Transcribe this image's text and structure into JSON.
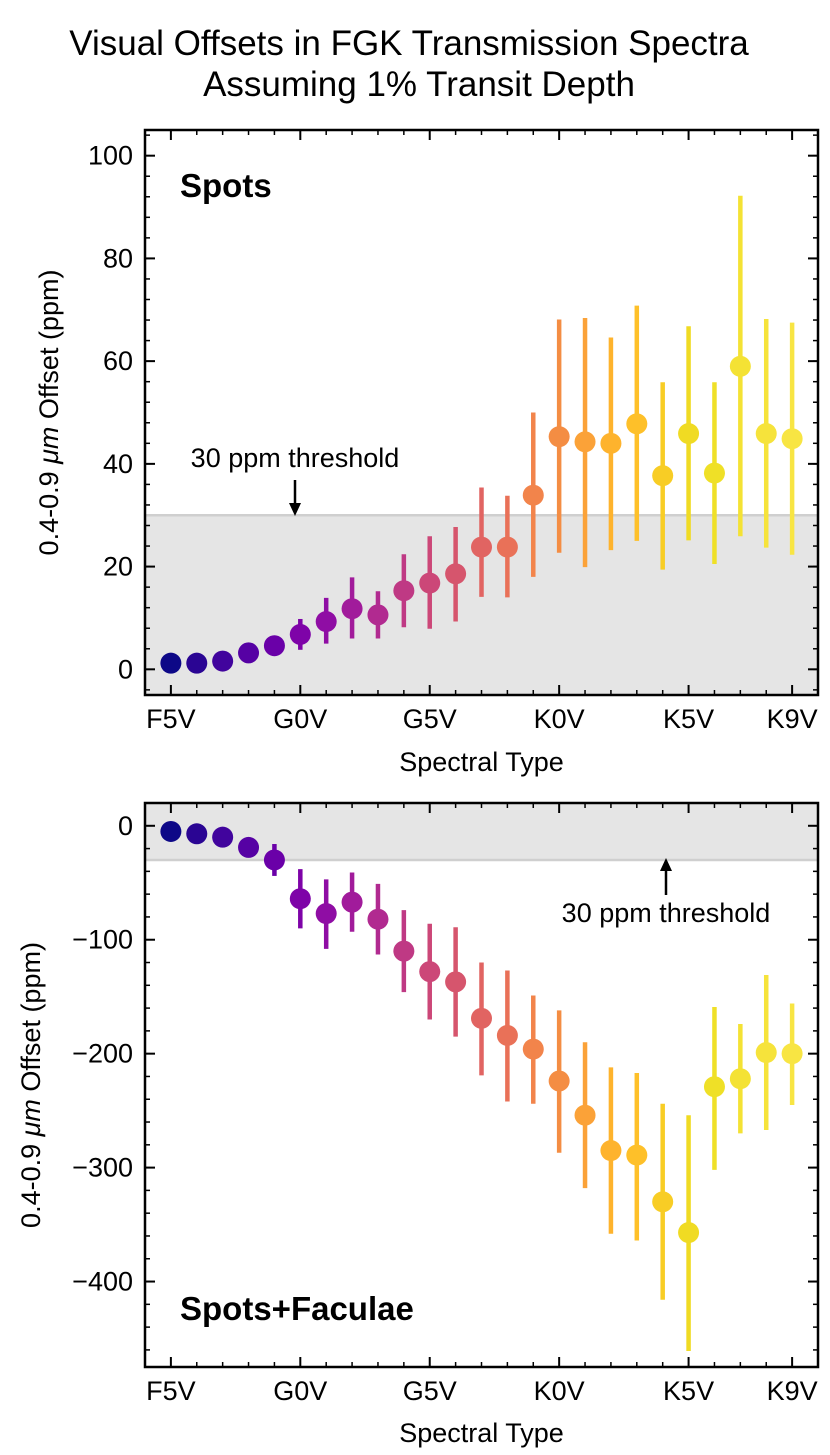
{
  "figure": {
    "title_line1": "Visual Offsets in FGK Transmission Spectra",
    "title_line2": "Assuming 1% Transit Depth"
  },
  "chart_data": [
    {
      "type": "scatter",
      "panel_label": "Spots",
      "xlabel": "Spectral Type",
      "ylabel_prefix": "0.4-0.9 ",
      "ylabel_unit": "μm",
      "ylabel_suffix": " Offset (ppm)",
      "xtick_labels": [
        "F5V",
        "G0V",
        "G5V",
        "K0V",
        "K5V",
        "K9V"
      ],
      "xtick_positions": [
        0,
        5,
        10,
        15,
        20,
        24
      ],
      "xlim": [
        -1,
        25
      ],
      "ylim": [
        -5,
        105
      ],
      "yticks": [
        0,
        20,
        40,
        60,
        80,
        100
      ],
      "threshold": {
        "value": 30,
        "label": "30 ppm threshold",
        "shade_to": -5
      },
      "colors": [
        "#0d0887",
        "#2a0593",
        "#41049d",
        "#5601a4",
        "#6a00a8",
        "#7e03a8",
        "#8f0da4",
        "#a11b9b",
        "#b12a90",
        "#bf3984",
        "#cc4778",
        "#d6556d",
        "#e16462",
        "#e97158",
        "#f2844b",
        "#f48d43",
        "#fba238",
        "#feb32d",
        "#fec029",
        "#f8cd25",
        "#f0db23",
        "#efe027",
        "#f4e234",
        "#f6e33b",
        "#f8e543"
      ],
      "series": [
        {
          "name": "Spots",
          "x": [
            0,
            1,
            2,
            3,
            4,
            5,
            6,
            7,
            8,
            9,
            10,
            11,
            12,
            13,
            14,
            15,
            16,
            17,
            18,
            19,
            20,
            21,
            22,
            23,
            24
          ],
          "y": [
            1.2,
            1.2,
            1.6,
            3.2,
            4.6,
            6.8,
            9.3,
            11.8,
            10.6,
            15.3,
            16.8,
            18.6,
            23.8,
            23.8,
            33.9,
            45.3,
            44.3,
            44.0,
            47.8,
            37.7,
            45.9,
            38.2,
            59.0,
            45.9,
            44.9
          ],
          "err_low": [
            0,
            0,
            0,
            0,
            0,
            3.0,
            4.3,
            5.8,
            4.6,
            7.1,
            8.9,
            9.3,
            9.7,
            9.8,
            15.9,
            22.6,
            24.4,
            20.8,
            22.8,
            18.3,
            20.8,
            17.7,
            33.1,
            22.2,
            22.6
          ],
          "err_high": [
            0,
            0,
            0,
            0,
            0,
            3.0,
            4.6,
            6.1,
            4.6,
            7.1,
            9.1,
            9.1,
            11.6,
            10.0,
            16.1,
            22.8,
            24.1,
            20.6,
            23.0,
            18.2,
            20.9,
            17.7,
            33.2,
            22.3,
            22.6
          ]
        }
      ]
    },
    {
      "type": "scatter",
      "panel_label": "Spots+Faculae",
      "xlabel": "Spectral Type",
      "ylabel_prefix": "0.4-0.9 ",
      "ylabel_unit": "μm",
      "ylabel_suffix": " Offset (ppm)",
      "xtick_labels": [
        "F5V",
        "G0V",
        "G5V",
        "K0V",
        "K5V",
        "K9V"
      ],
      "xtick_positions": [
        0,
        5,
        10,
        15,
        20,
        24
      ],
      "xlim": [
        -1,
        25
      ],
      "ylim": [
        -475,
        20
      ],
      "yticks": [
        0,
        -100,
        -200,
        -300,
        -400
      ],
      "threshold": {
        "value": -30,
        "label": "30 ppm threshold",
        "shade_to": 20
      },
      "colors": [
        "#0d0887",
        "#2a0593",
        "#41049d",
        "#5601a4",
        "#6a00a8",
        "#7e03a8",
        "#8f0da4",
        "#a11b9b",
        "#b12a90",
        "#bf3984",
        "#cc4778",
        "#d6556d",
        "#e16462",
        "#e97158",
        "#f2844b",
        "#f48d43",
        "#fba238",
        "#feb32d",
        "#fec029",
        "#f8cd25",
        "#f0db23",
        "#efe027",
        "#f4e234",
        "#f6e33b",
        "#f8e543"
      ],
      "series": [
        {
          "name": "Spots+Faculae",
          "x": [
            0,
            1,
            2,
            3,
            4,
            5,
            6,
            7,
            8,
            9,
            10,
            11,
            12,
            13,
            14,
            15,
            16,
            17,
            18,
            19,
            20,
            21,
            22,
            23,
            24
          ],
          "y": [
            -5,
            -7,
            -10,
            -19,
            -30,
            -64,
            -77,
            -67,
            -82,
            -110,
            -128,
            -137,
            -169,
            -184,
            -196,
            -224,
            -254,
            -285,
            -289,
            -330,
            -357,
            -229,
            -222,
            -199,
            -200
          ],
          "err_low": [
            0,
            0,
            0,
            0,
            14,
            26,
            31,
            26,
            31,
            36,
            42,
            48,
            50,
            58,
            48,
            63,
            64,
            73,
            75,
            86,
            104,
            73,
            48,
            68,
            45
          ],
          "err_high": [
            0,
            0,
            0,
            0,
            14,
            26,
            30,
            26,
            31,
            36,
            42,
            48,
            49,
            57,
            47,
            62,
            64,
            73,
            72,
            86,
            103,
            70,
            48,
            68,
            44
          ]
        }
      ]
    }
  ]
}
